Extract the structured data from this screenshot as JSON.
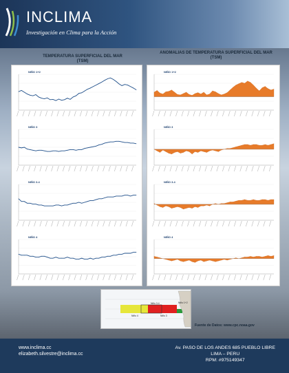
{
  "header": {
    "brand": "INCLIMA",
    "tagline": "Investigación en Clima para la Acción"
  },
  "left_title_line1": "TEMPERATURA SUPERFICIAL DEL MAR",
  "left_title_line2": "(TSM)",
  "right_title_line1": "ANOMALIAS DE TEMPERATURA SUPERFICIAL DEL MAR",
  "right_title_line2": "(TSM)",
  "map": {
    "labels": [
      "Niño 1+2",
      "Niño 3.4",
      "Niño 4",
      "Niño 3"
    ],
    "colors": {
      "nino4": "#e6e63a",
      "nino3": "#e02020"
    }
  },
  "source": "Fuente de Datos: www.cpc.noaa.gov",
  "footer": {
    "web": "www.inclima.cc",
    "email": "elizabeth.silvestre@inclima.cc",
    "address": "Av. PASO DE LOS ANDES 685 PUEBLO LIBRE",
    "city": "LIMA – PERU",
    "rpm": "RPM:  #975149347"
  },
  "colors": {
    "line": "#1f4f8a",
    "anomaly": "#e77b2a",
    "header": "#1c3558",
    "footer": "#1e3a5c"
  },
  "chart_data": [
    {
      "type": "line",
      "label": "NIÑO 1+2",
      "ylim": [
        18,
        30
      ],
      "values": [
        24.2,
        24.6,
        24.0,
        23.4,
        23.0,
        22.8,
        23.2,
        22.4,
        22.0,
        21.8,
        22.1,
        21.5,
        21.6,
        21.2,
        21.7,
        21.3,
        21.5,
        22.0,
        21.6,
        22.4,
        22.8,
        23.6,
        23.8,
        24.4,
        25.0,
        25.4,
        25.9,
        26.4,
        26.9,
        27.4,
        28.0,
        28.5,
        28.8,
        28.3,
        27.6,
        26.8,
        26.2,
        26.6,
        26.4,
        25.9,
        25.4,
        24.8
      ]
    },
    {
      "type": "line",
      "label": "NIÑO 3",
      "ylim": [
        24,
        30
      ],
      "values": [
        27.0,
        26.9,
        27.0,
        26.7,
        26.6,
        26.5,
        26.4,
        26.5,
        26.5,
        26.4,
        26.3,
        26.3,
        26.4,
        26.4,
        26.3,
        26.4,
        26.4,
        26.5,
        26.6,
        26.6,
        26.5,
        26.6,
        26.6,
        26.8,
        26.9,
        27.0,
        27.1,
        27.2,
        27.4,
        27.5,
        27.7,
        27.8,
        27.9,
        27.9,
        28.0,
        28.0,
        27.9,
        27.8,
        27.8,
        27.7,
        27.7,
        27.6
      ]
    },
    {
      "type": "line",
      "label": "NIÑO 3.4",
      "ylim": [
        26,
        30
      ],
      "values": [
        28.4,
        28.1,
        28.1,
        27.9,
        27.9,
        27.8,
        27.8,
        27.7,
        27.7,
        27.6,
        27.6,
        27.6,
        27.6,
        27.7,
        27.7,
        27.6,
        27.7,
        27.7,
        27.8,
        27.9,
        27.9,
        28.0,
        27.9,
        28.0,
        28.1,
        28.2,
        28.2,
        28.3,
        28.4,
        28.4,
        28.5,
        28.6,
        28.6,
        28.6,
        28.7,
        28.7,
        28.7,
        28.8,
        28.8,
        28.7,
        28.8,
        28.8
      ]
    },
    {
      "type": "line",
      "label": "NIÑO 4",
      "ylim": [
        27,
        30.5
      ],
      "values": [
        29.0,
        28.9,
        28.9,
        28.9,
        28.8,
        28.8,
        28.7,
        28.7,
        28.8,
        28.8,
        28.7,
        28.6,
        28.6,
        28.7,
        28.6,
        28.6,
        28.6,
        28.7,
        28.6,
        28.6,
        28.5,
        28.5,
        28.6,
        28.5,
        28.5,
        28.6,
        28.5,
        28.6,
        28.6,
        28.7,
        28.7,
        28.8,
        28.8,
        28.9,
        28.9,
        29.0,
        29.0,
        29.1,
        29.1,
        29.1,
        29.2,
        29.2
      ]
    },
    {
      "type": "area",
      "label": "NIÑO 1+2",
      "ylim": [
        -3,
        5
      ],
      "values": [
        1.0,
        1.4,
        0.8,
        0.6,
        1.1,
        1.2,
        1.5,
        1.0,
        0.5,
        0.4,
        0.7,
        1.0,
        0.5,
        0.3,
        0.7,
        0.9,
        0.6,
        1.0,
        0.4,
        0.6,
        1.3,
        1.1,
        0.7,
        0.4,
        0.6,
        0.9,
        1.5,
        2.1,
        2.6,
        2.9,
        3.2,
        3.0,
        3.5,
        3.2,
        2.6,
        1.9,
        1.3,
        2.0,
        2.3,
        1.8,
        1.5,
        1.7
      ]
    },
    {
      "type": "area",
      "label": "NIÑO 3",
      "ylim": [
        -2,
        2.5
      ],
      "values": [
        0.0,
        -0.2,
        -0.4,
        -0.1,
        -0.3,
        -0.5,
        -0.6,
        -0.4,
        -0.3,
        -0.5,
        -0.4,
        -0.2,
        -0.3,
        -0.6,
        -0.3,
        -0.4,
        -0.2,
        -0.3,
        -0.4,
        -0.2,
        -0.1,
        -0.2,
        -0.3,
        -0.1,
        0.0,
        0.1,
        0.1,
        0.2,
        0.3,
        0.4,
        0.5,
        0.6,
        0.6,
        0.5,
        0.6,
        0.6,
        0.5,
        0.5,
        0.6,
        0.5,
        0.6,
        0.7
      ]
    },
    {
      "type": "area",
      "label": "NIÑO 3.4",
      "ylim": [
        -2,
        2.5
      ],
      "values": [
        0.1,
        -0.1,
        -0.3,
        -0.4,
        -0.2,
        -0.3,
        -0.5,
        -0.4,
        -0.3,
        -0.4,
        -0.6,
        -0.5,
        -0.4,
        -0.5,
        -0.3,
        -0.4,
        -0.2,
        -0.2,
        -0.1,
        -0.2,
        0.0,
        0.1,
        0.0,
        0.1,
        0.1,
        0.2,
        0.3,
        0.3,
        0.4,
        0.5,
        0.5,
        0.6,
        0.5,
        0.5,
        0.6,
        0.5,
        0.5,
        0.6,
        0.6,
        0.5,
        0.6,
        0.6
      ]
    },
    {
      "type": "area",
      "label": "NIÑO 4",
      "ylim": [
        -2,
        2.5
      ],
      "values": [
        0.3,
        0.2,
        0.1,
        0.0,
        -0.1,
        -0.2,
        -0.3,
        -0.2,
        -0.1,
        -0.3,
        -0.4,
        -0.3,
        -0.2,
        -0.4,
        -0.5,
        -0.3,
        -0.2,
        -0.4,
        -0.3,
        -0.2,
        -0.3,
        -0.4,
        -0.3,
        -0.2,
        -0.1,
        -0.2,
        -0.1,
        0.0,
        0.1,
        0.0,
        0.1,
        0.2,
        0.2,
        0.3,
        0.2,
        0.3,
        0.3,
        0.2,
        0.3,
        0.4,
        0.3,
        0.4
      ]
    }
  ]
}
